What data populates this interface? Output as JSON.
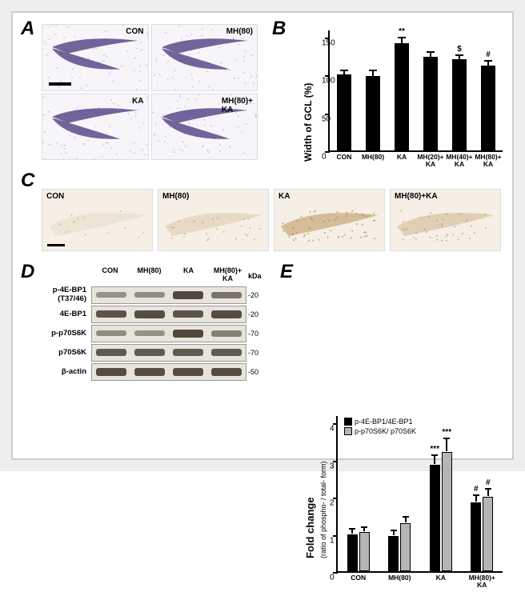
{
  "panels": {
    "A": {
      "label": "A",
      "conditions": [
        "CON",
        "MH(80)",
        "KA",
        "MH(80)+\nKA"
      ]
    },
    "B": {
      "label": "B",
      "ylabel": "Width of GCL (%)",
      "ylim": [
        0,
        150
      ],
      "ytick_step": 50,
      "yticks": [
        0,
        50,
        100,
        150
      ],
      "bar_color": "#000000",
      "categories": [
        "CON",
        "MH(80)",
        "KA",
        "MH(20)+\nKA",
        "MH(40)+\nKA",
        "MH(80)+\nKA"
      ],
      "values": [
        100,
        98,
        142,
        124,
        120,
        112
      ],
      "errors": [
        6,
        8,
        7,
        6,
        6,
        6
      ],
      "significance": [
        "",
        "",
        "**",
        "",
        "$",
        "#"
      ]
    },
    "C": {
      "label": "C",
      "conditions": [
        "CON",
        "MH(80)",
        "KA",
        "MH(80)+KA"
      ]
    },
    "D": {
      "label": "D",
      "lanes": [
        "CON",
        "MH(80)",
        "KA",
        "MH(80)+\nKA"
      ],
      "kda_header": "kDa",
      "rows": [
        {
          "name": "p-4E-BP1\n(T37/46)",
          "kda": "-20",
          "intensities": [
            0.35,
            0.4,
            0.95,
            0.6
          ]
        },
        {
          "name": "4E-BP1",
          "kda": "-20",
          "intensities": [
            0.85,
            0.9,
            0.85,
            0.9
          ]
        },
        {
          "name": "p-p70S6K",
          "kda": "-70",
          "intensities": [
            0.4,
            0.35,
            0.95,
            0.5
          ]
        },
        {
          "name": "p70S6K",
          "kda": "-70",
          "intensities": [
            0.8,
            0.8,
            0.8,
            0.8
          ]
        },
        {
          "name": "β-actin",
          "kda": "-50",
          "intensities": [
            0.9,
            0.9,
            0.9,
            0.9
          ]
        }
      ]
    },
    "E": {
      "label": "E",
      "ylabel": "Fold change",
      "ylabel_sub": "(ratio of phospho- / total- form)",
      "ylim": [
        0,
        4
      ],
      "ytick_step": 1,
      "yticks": [
        0,
        1,
        2,
        3,
        4
      ],
      "legend": [
        {
          "label": "p-4E-BP1/4E-BP1",
          "color": "#000000"
        },
        {
          "label": "p-p70S6K/ p70S6K",
          "color": "#b5b5b5"
        }
      ],
      "categories": [
        "CON",
        "MH(80)",
        "KA",
        "MH(80)+\nKA"
      ],
      "series1_color": "#000000",
      "series2_color": "#b5b5b5",
      "series1_values": [
        1.0,
        0.95,
        2.85,
        1.85
      ],
      "series2_values": [
        1.05,
        1.3,
        3.2,
        2.0
      ],
      "series1_errors": [
        0.12,
        0.12,
        0.25,
        0.18
      ],
      "series2_errors": [
        0.12,
        0.15,
        0.35,
        0.2
      ],
      "series1_sig": [
        "",
        "",
        "***",
        "#"
      ],
      "series2_sig": [
        "",
        "",
        "***",
        "#"
      ]
    }
  },
  "colors": {
    "frame": "#cccccc",
    "outer_bg": "#eeeeee",
    "histo_bg": "#f7f5fa",
    "histo_stain": "#5a4a8a",
    "ihc_bg": "#f5efe6",
    "ihc_stain": "#c8a878"
  }
}
